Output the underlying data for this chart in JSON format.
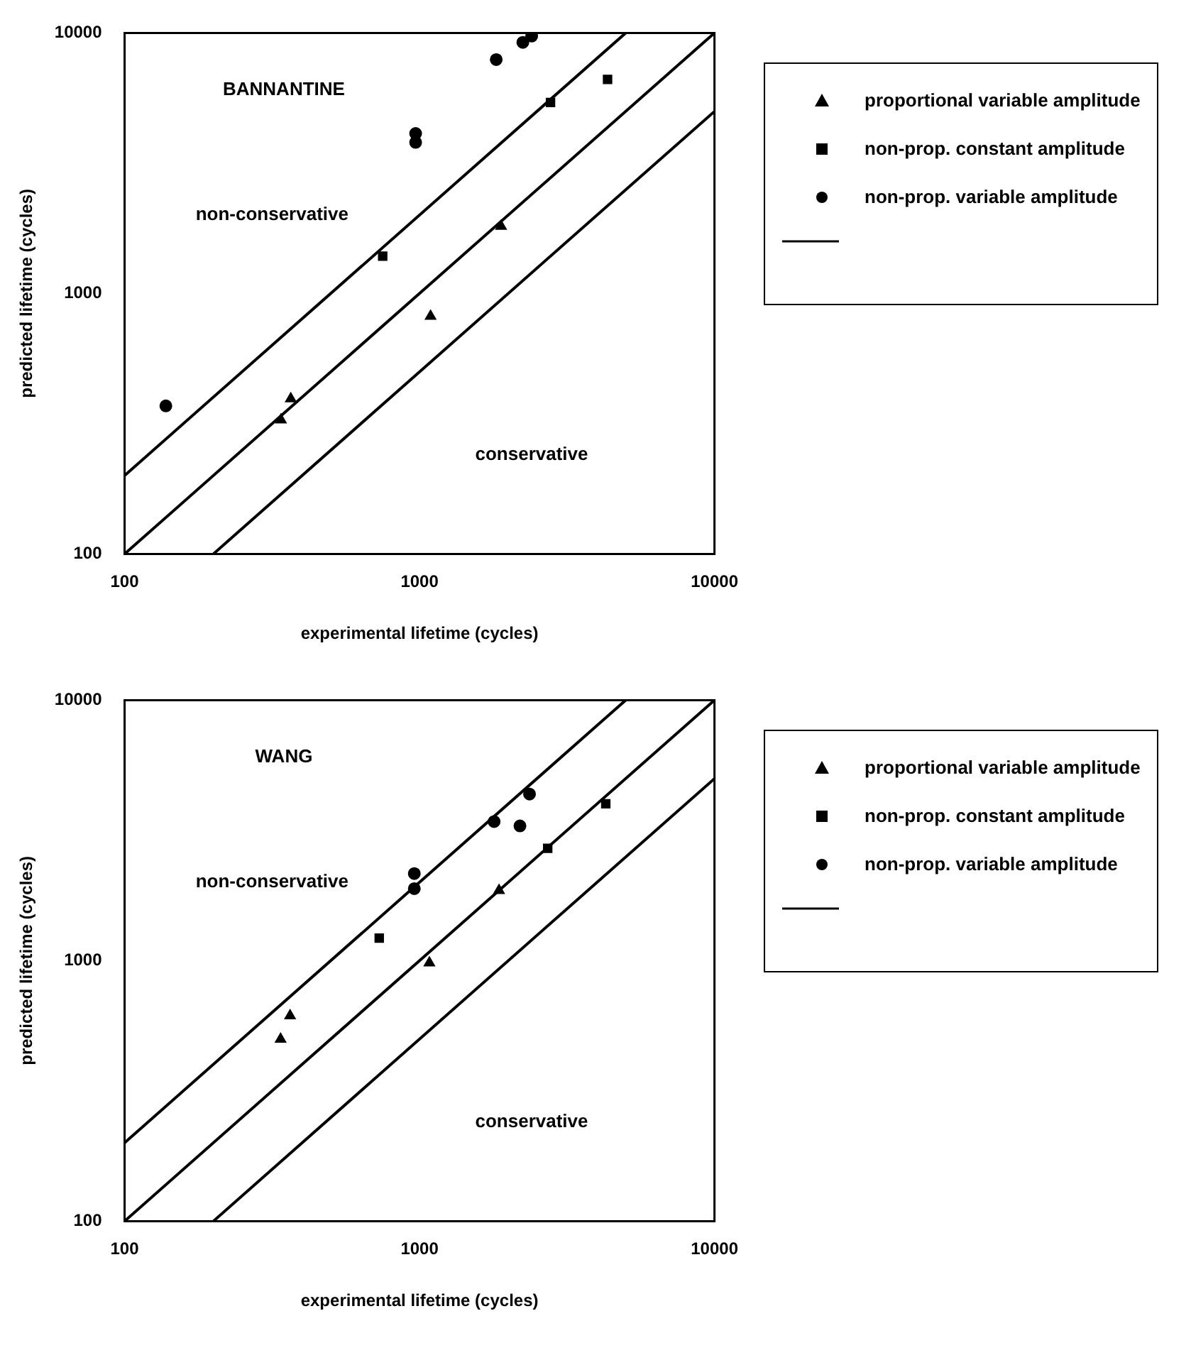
{
  "chart_data": [
    {
      "type": "scatter",
      "xlabel": "experimental lifetime (cycles)",
      "ylabel": "predicted lifetime (cycles)",
      "log": "xy",
      "xlim": [
        100,
        10000
      ],
      "ylim": [
        100,
        10000
      ],
      "xticks": [
        100,
        1000,
        10000
      ],
      "yticks": [
        100,
        1000,
        10000
      ],
      "grid": false,
      "legend": "right",
      "annotations": [
        "BANNANTINE",
        "non-conservative",
        "conservative"
      ],
      "series": [
        {
          "name": "proportional variable amplitude",
          "marker": "triangle",
          "color": "#000000",
          "x": [
            339,
            366,
            1090,
            1890
          ],
          "values": [
            327,
            394,
            817,
            1810
          ]
        },
        {
          "name": "non-prop. constant amplitude",
          "marker": "square",
          "color": "#000000",
          "x": [
            750,
            2780,
            4340
          ],
          "values": [
            1390,
            5410,
            6630
          ]
        },
        {
          "name": "non-prop. variable amplitude",
          "marker": "circle",
          "color": "#000000",
          "x": [
            138,
            970,
            970,
            1820,
            2240,
            2400
          ],
          "values": [
            370,
            4110,
            3800,
            7900,
            9200,
            9730
          ]
        },
        {
          "type": "line",
          "color": "#000000",
          "x": [
            100,
            5000
          ],
          "values": [
            200,
            10000
          ]
        },
        {
          "type": "line",
          "color": "#000000",
          "x": [
            100,
            10000
          ],
          "values": [
            100,
            10000
          ]
        },
        {
          "type": "line",
          "color": "#000000",
          "x": [
            200,
            10000
          ],
          "values": [
            100,
            5000
          ]
        }
      ]
    },
    {
      "type": "scatter",
      "xlabel": "experimental lifetime (cycles)",
      "ylabel": "predicted lifetime (cycles)",
      "log": "xy",
      "xlim": [
        100,
        10000
      ],
      "ylim": [
        100,
        10000
      ],
      "xticks": [
        100,
        1000,
        10000
      ],
      "yticks": [
        100,
        1000,
        10000
      ],
      "grid": false,
      "legend": "right",
      "annotations": [
        "WANG",
        "non-conservative",
        "conservative"
      ],
      "series": [
        {
          "name": "proportional variable amplitude",
          "marker": "triangle",
          "color": "#000000",
          "x": [
            338,
            364,
            1080,
            1860
          ],
          "values": [
            500,
            615,
            980,
            1860
          ]
        },
        {
          "name": "non-prop. constant amplitude",
          "marker": "square",
          "color": "#000000",
          "x": [
            730,
            2720,
            4280
          ],
          "values": [
            1220,
            2700,
            4000
          ]
        },
        {
          "name": "non-prop. variable amplitude",
          "marker": "circle",
          "color": "#000000",
          "x": [
            960,
            960,
            1790,
            2190,
            2360
          ],
          "values": [
            2160,
            1890,
            3420,
            3290,
            4360
          ]
        },
        {
          "type": "line",
          "color": "#000000",
          "x": [
            100,
            5000
          ],
          "values": [
            200,
            10000
          ]
        },
        {
          "type": "line",
          "color": "#000000",
          "x": [
            100,
            10000
          ],
          "values": [
            100,
            10000
          ]
        },
        {
          "type": "line",
          "color": "#000000",
          "x": [
            200,
            10000
          ],
          "values": [
            100,
            5000
          ]
        }
      ]
    }
  ]
}
